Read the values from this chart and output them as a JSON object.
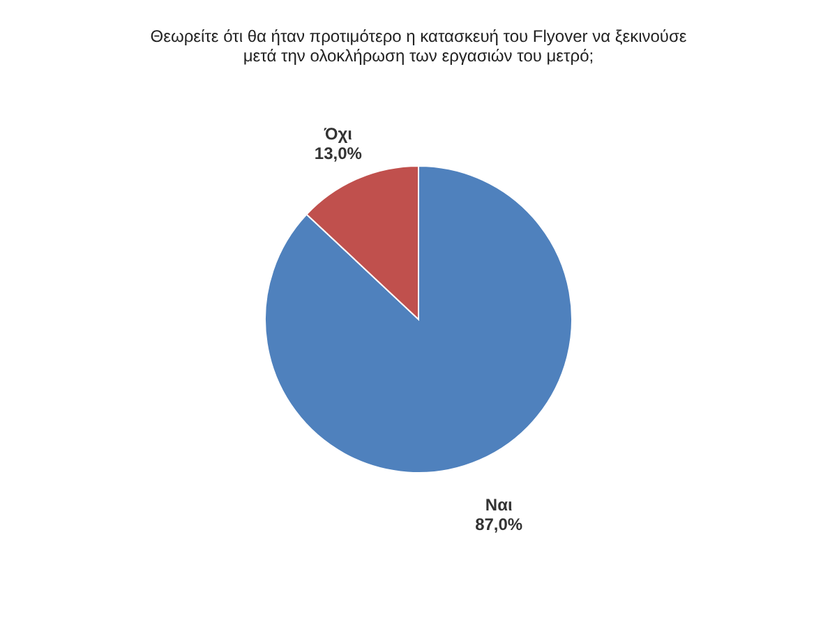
{
  "chart_data": {
    "type": "pie",
    "title": "Θεωρείτε ότι θα ήταν προτιμότερο η κατασκευή του Flyover να ξεκινούσε\nμετά την ολοκλήρωση των εργασιών του μετρό;",
    "categories": [
      "Ναι",
      "Όχι"
    ],
    "values": [
      87.0,
      13.0
    ],
    "colors": [
      "#4f81bd",
      "#c0504d"
    ],
    "value_labels": [
      "87,0%",
      "13,0%"
    ]
  }
}
